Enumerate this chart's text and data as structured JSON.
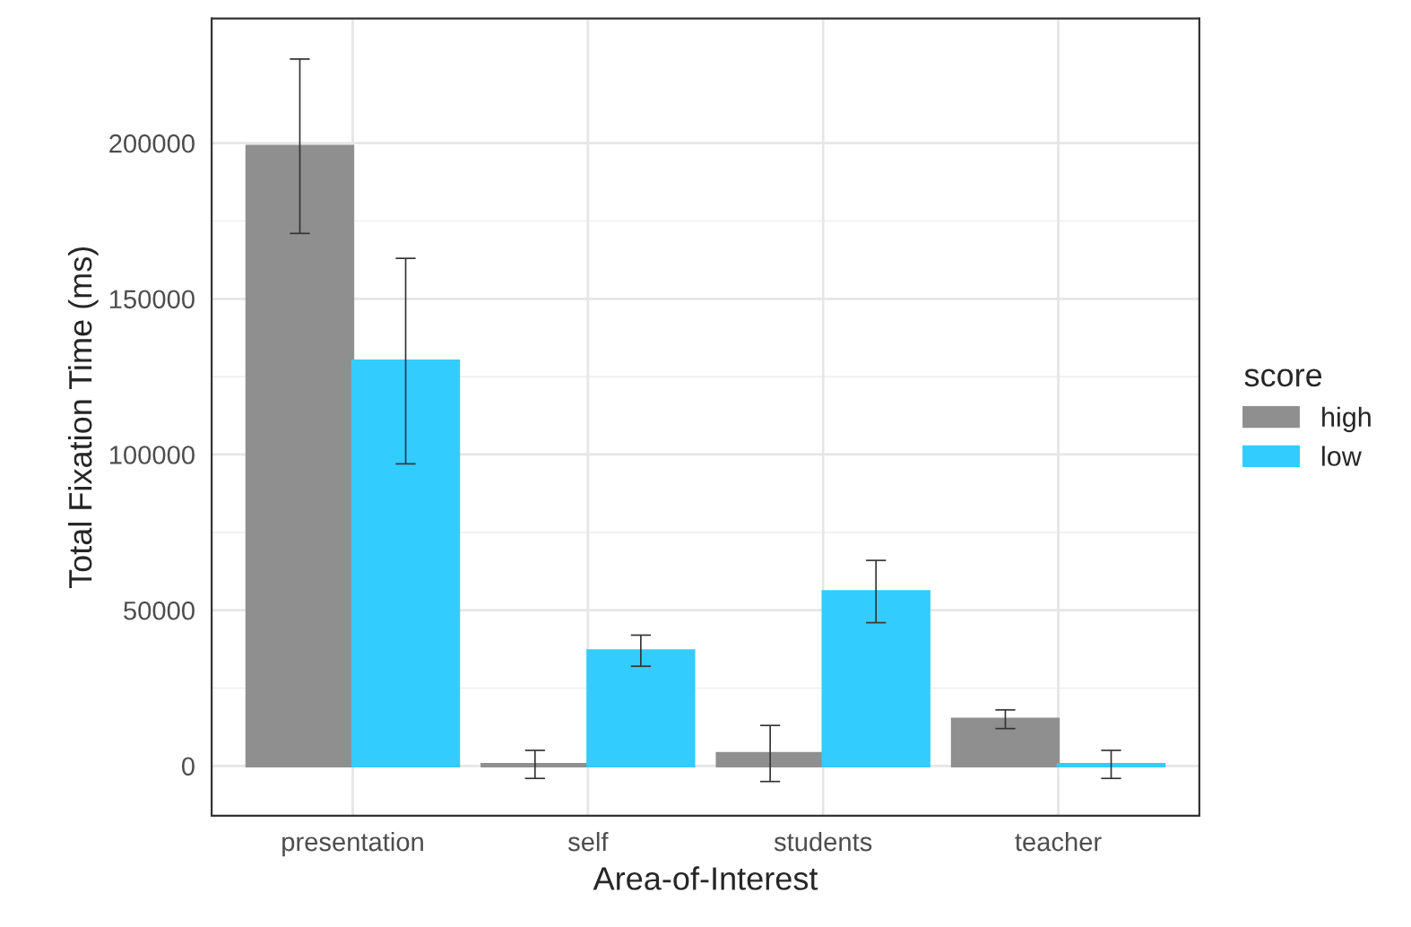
{
  "chart_data": {
    "type": "bar",
    "xlabel": "Area-of-Interest",
    "ylabel": "Total Fixation Time (ms)",
    "legend_title": "score",
    "categories": [
      "presentation",
      "self",
      "students",
      "teacher"
    ],
    "series": [
      {
        "name": "high",
        "color": "#8f8f8f",
        "values": [
          199000,
          500,
          4000,
          15000
        ],
        "errors": [
          [
            171000,
            227000
          ],
          [
            -4000,
            5000
          ],
          [
            -5000,
            13000
          ],
          [
            12000,
            18000
          ]
        ]
      },
      {
        "name": "low",
        "color": "#33ccff",
        "values": [
          130000,
          37000,
          56000,
          500
        ],
        "errors": [
          [
            97000,
            163000
          ],
          [
            32000,
            42000
          ],
          [
            46000,
            66000
          ],
          [
            -4000,
            5000
          ]
        ]
      }
    ],
    "ylim": [
      -16000,
      240000
    ],
    "yticks": [
      0,
      50000,
      100000,
      150000,
      200000
    ],
    "grid": true,
    "legend": "right"
  }
}
